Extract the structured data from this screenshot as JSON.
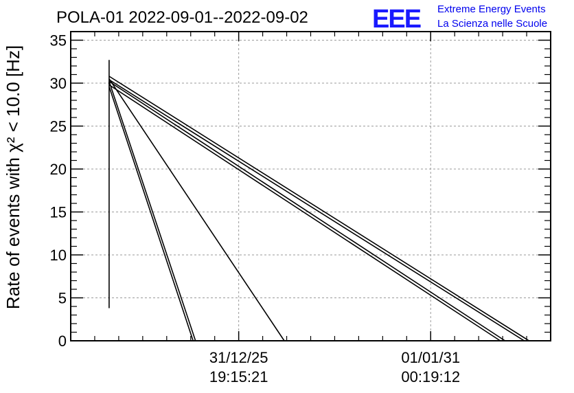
{
  "chart_data": {
    "type": "line",
    "title": "POLA-01 2022-09-01--2022-09-02",
    "ylabel": "Rate of events with χ² < 10.0 [Hz]",
    "xlabel": "",
    "ylim": [
      0,
      36
    ],
    "xlim": [
      0,
      100
    ],
    "yticks": [
      0,
      5,
      10,
      15,
      20,
      25,
      30,
      35
    ],
    "xticks": [
      {
        "x": 35,
        "line1": "31/12/25",
        "line2": "19:15:21"
      },
      {
        "x": 75,
        "line1": "01/01/31",
        "line2": "00:19:12"
      }
    ],
    "grid": true,
    "series": [
      {
        "x": [
          8.0,
          8.0
        ],
        "y": [
          3.8,
          32.7
        ]
      },
      {
        "x": [
          8.0,
          25.5
        ],
        "y": [
          29.6,
          0
        ]
      },
      {
        "x": [
          8.0,
          26.0
        ],
        "y": [
          30.2,
          0
        ]
      },
      {
        "x": [
          8.0,
          44.5
        ],
        "y": [
          30.5,
          0
        ]
      },
      {
        "x": [
          8.0,
          89.5
        ],
        "y": [
          29.8,
          0
        ]
      },
      {
        "x": [
          8.0,
          90.5
        ],
        "y": [
          30.2,
          0
        ]
      },
      {
        "x": [
          8.0,
          94.5
        ],
        "y": [
          30.4,
          0
        ]
      },
      {
        "x": [
          8.0,
          95.5
        ],
        "y": [
          30.8,
          0
        ]
      }
    ]
  },
  "logo": {
    "mark": "EEE",
    "line1": "Extreme Energy Events",
    "line2": "La Scienza nelle Scuole"
  }
}
